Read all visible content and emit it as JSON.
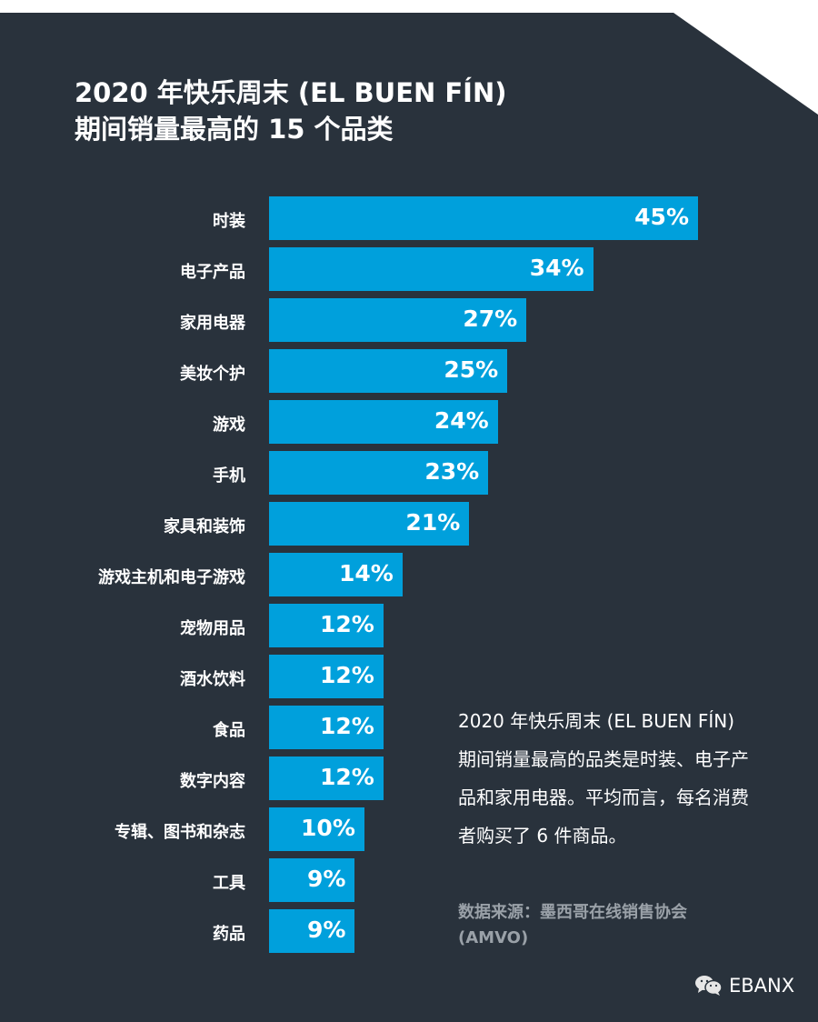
{
  "chart_data": {
    "type": "bar",
    "orientation": "horizontal",
    "title": "2020 年快乐周末 (EL BUEN FÍN)\n期间销量最高的 15 个品类",
    "title_lines": [
      "2020 年快乐周末 (EL BUEN FÍN)",
      "期间销量最高的 15 个品类"
    ],
    "categories": [
      "时装",
      "电子产品",
      "家用电器",
      "美妆个护",
      "游戏",
      "手机",
      "家具和装饰",
      "游戏主机和电子游戏",
      "宠物用品",
      "酒水饮料",
      "食品",
      "数字内容",
      "专辑、图书和杂志",
      "工具",
      "药品"
    ],
    "values": [
      45,
      34,
      27,
      25,
      24,
      23,
      21,
      14,
      12,
      12,
      12,
      12,
      10,
      9,
      9
    ],
    "value_labels": [
      "45%",
      "34%",
      "27%",
      "25%",
      "24%",
      "23%",
      "21%",
      "14%",
      "12%",
      "12%",
      "12%",
      "12%",
      "10%",
      "9%",
      "9%"
    ],
    "unit": "%",
    "xlim": [
      0,
      45
    ],
    "grid": false,
    "bar_color": "#00a0dc",
    "background": "#29323c"
  },
  "note": "2020 年快乐周末 (EL BUEN FÍN) 期间销量最高的品类是时装、电子产品和家用电器。平均而言，每名消费者购买了 6 件商品。",
  "source": "数据来源：墨西哥在线销售协会 (AMVO)",
  "logo": {
    "text": "EBANX",
    "icon": "wechat-icon"
  }
}
